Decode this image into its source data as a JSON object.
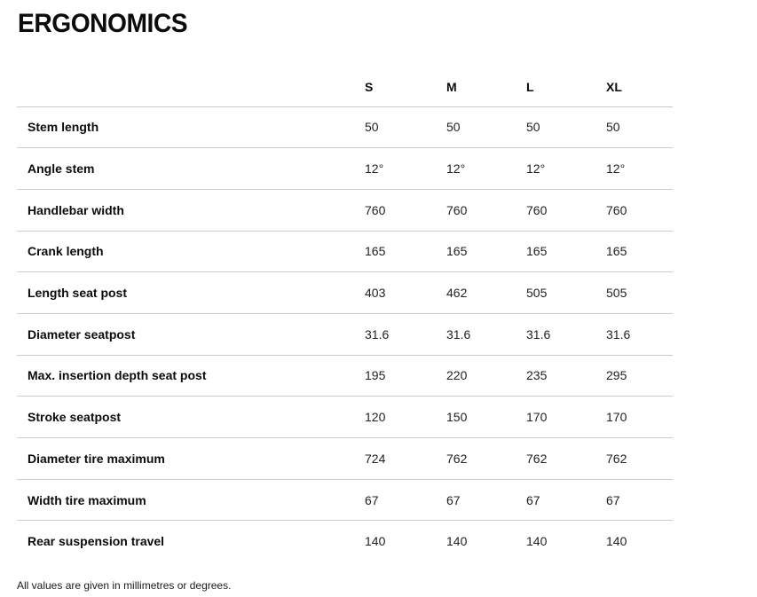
{
  "page": {
    "title": "ERGONOMICS",
    "footnote": "All values are given in millimetres or degrees."
  },
  "table": {
    "size_columns": [
      "S",
      "M",
      "L",
      "XL"
    ],
    "rows": [
      {
        "label": "Stem length",
        "values": [
          "50",
          "50",
          "50",
          "50"
        ]
      },
      {
        "label": "Angle stem",
        "values": [
          "12°",
          "12°",
          "12°",
          "12°"
        ]
      },
      {
        "label": "Handlebar width",
        "values": [
          "760",
          "760",
          "760",
          "760"
        ]
      },
      {
        "label": "Crank length",
        "values": [
          "165",
          "165",
          "165",
          "165"
        ]
      },
      {
        "label": "Length seat post",
        "values": [
          "403",
          "462",
          "505",
          "505"
        ]
      },
      {
        "label": "Diameter seatpost",
        "values": [
          "31.6",
          "31.6",
          "31.6",
          "31.6"
        ]
      },
      {
        "label": "Max. insertion depth seat post",
        "values": [
          "195",
          "220",
          "235",
          "295"
        ]
      },
      {
        "label": "Stroke seatpost",
        "values": [
          "120",
          "150",
          "170",
          "170"
        ]
      },
      {
        "label": "Diameter tire maximum",
        "values": [
          "724",
          "762",
          "762",
          "762"
        ]
      },
      {
        "label": "Width tire maximum",
        "values": [
          "67",
          "67",
          "67",
          "67"
        ]
      },
      {
        "label": "Rear suspension travel",
        "values": [
          "140",
          "140",
          "140",
          "140"
        ]
      }
    ]
  },
  "colors": {
    "divider": "#cccccc",
    "heading_text": "#0b0b0b",
    "value_text": "#222222",
    "background": "#ffffff"
  }
}
